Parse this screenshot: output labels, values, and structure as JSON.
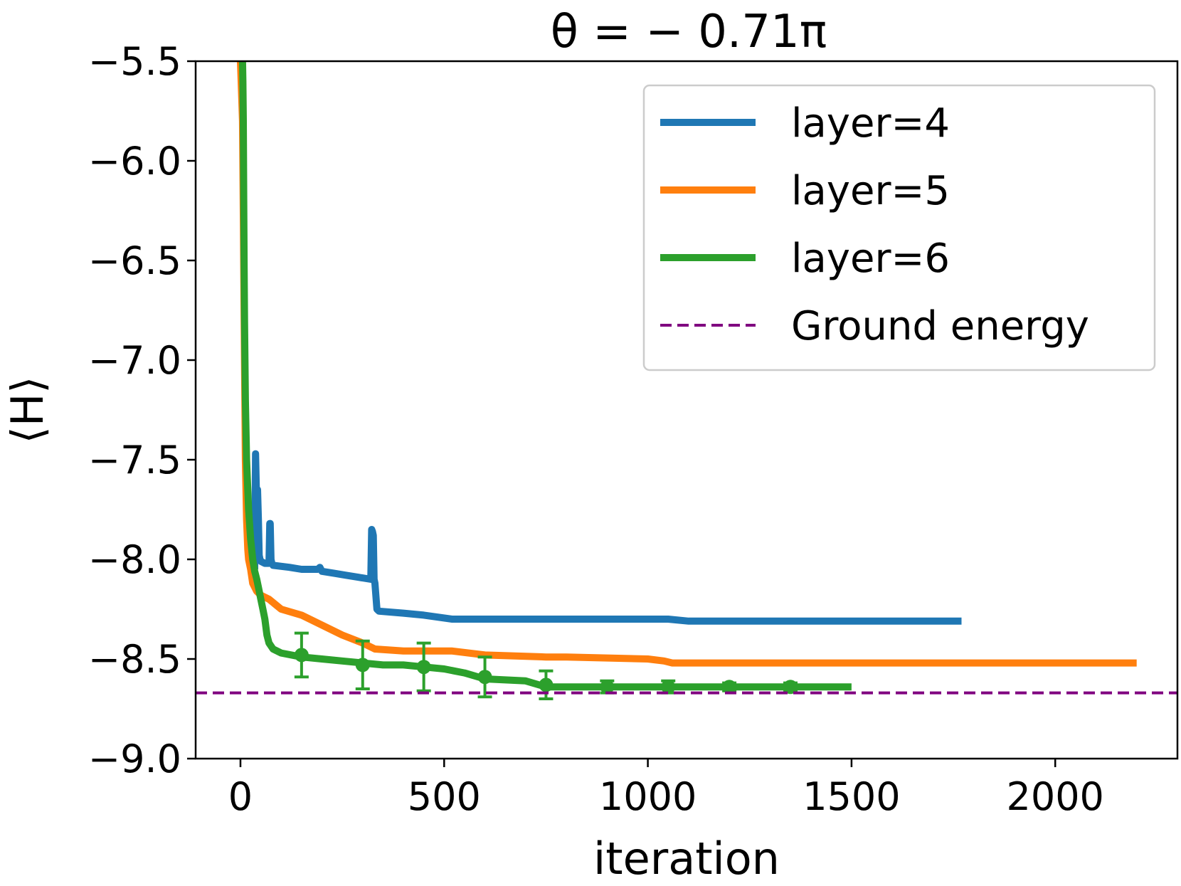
{
  "chart_data": {
    "type": "line",
    "title": "θ = − 0.71π",
    "xlabel": "iteration",
    "ylabel": "⟨H⟩",
    "xlim": [
      -110,
      2300
    ],
    "ylim": [
      -9.0,
      -5.5
    ],
    "xticks": [
      0,
      500,
      1000,
      1500,
      2000
    ],
    "yticks": [
      -9.0,
      -8.5,
      -8.0,
      -7.5,
      -7.0,
      -6.5,
      -6.0,
      -5.5
    ],
    "xtick_labels": [
      "0",
      "500",
      "1000",
      "1500",
      "2000"
    ],
    "ytick_labels": [
      "−9.0",
      "−8.5",
      "−8.0",
      "−7.5",
      "−7.0",
      "−6.5",
      "−6.0",
      "−5.5"
    ],
    "grid": false,
    "legend_position": "top-right",
    "series": [
      {
        "name": "layer=4",
        "color": "#1f77b4",
        "x": [
          35,
          37,
          38,
          40,
          42,
          44,
          46,
          48,
          50,
          60,
          70,
          72,
          73,
          75,
          77,
          80,
          120,
          150,
          190,
          195,
          200,
          230,
          260,
          290,
          320,
          322,
          324,
          326,
          328,
          330,
          335,
          340,
          400,
          450,
          520,
          680,
          1050,
          1100,
          1200,
          1500,
          1770
        ],
        "y": [
          -8.05,
          -7.47,
          -7.55,
          -7.75,
          -7.65,
          -7.8,
          -7.98,
          -8.0,
          -8.01,
          -8.02,
          -8.02,
          -7.82,
          -7.82,
          -8.0,
          -8.02,
          -8.03,
          -8.04,
          -8.05,
          -8.05,
          -8.04,
          -8.06,
          -8.07,
          -8.08,
          -8.09,
          -8.1,
          -7.85,
          -7.86,
          -7.88,
          -8.1,
          -8.12,
          -8.25,
          -8.26,
          -8.27,
          -8.28,
          -8.3,
          -8.3,
          -8.3,
          -8.31,
          -8.31,
          -8.31,
          -8.31
        ]
      },
      {
        "name": "layer=5",
        "color": "#ff7f0e",
        "x": [
          0,
          5,
          10,
          12,
          15,
          18,
          20,
          25,
          30,
          40,
          50,
          70,
          100,
          150,
          200,
          250,
          300,
          330,
          400,
          520,
          600,
          750,
          800,
          1000,
          1040,
          1060,
          1200,
          1500,
          1800,
          2200
        ],
        "y": [
          -5.5,
          -5.8,
          -7.0,
          -7.5,
          -7.8,
          -7.95,
          -8.0,
          -8.05,
          -8.12,
          -8.16,
          -8.18,
          -8.2,
          -8.25,
          -8.28,
          -8.33,
          -8.38,
          -8.42,
          -8.45,
          -8.46,
          -8.46,
          -8.48,
          -8.49,
          -8.49,
          -8.5,
          -8.51,
          -8.52,
          -8.52,
          -8.52,
          -8.52,
          -8.52
        ]
      },
      {
        "name": "layer=6",
        "color": "#2ca02c",
        "x": [
          5,
          6,
          7,
          8,
          9,
          10,
          11,
          12,
          15,
          20,
          25,
          30,
          35,
          40,
          45,
          50,
          55,
          60,
          65,
          70,
          80,
          100,
          150,
          200,
          250,
          300,
          350,
          400,
          450,
          500,
          550,
          600,
          700,
          750,
          800,
          900,
          1000,
          1100,
          1200,
          1300,
          1350,
          1500
        ],
        "y": [
          -5.5,
          -5.6,
          -5.8,
          -6.2,
          -6.5,
          -6.8,
          -7.0,
          -7.2,
          -7.5,
          -7.75,
          -7.9,
          -8.0,
          -8.06,
          -8.1,
          -8.15,
          -8.2,
          -8.25,
          -8.3,
          -8.38,
          -8.42,
          -8.45,
          -8.47,
          -8.49,
          -8.5,
          -8.51,
          -8.52,
          -8.53,
          -8.53,
          -8.54,
          -8.55,
          -8.57,
          -8.6,
          -8.61,
          -8.64,
          -8.64,
          -8.64,
          -8.64,
          -8.64,
          -8.64,
          -8.64,
          -8.64,
          -8.64
        ],
        "markers": {
          "x": [
            150,
            300,
            450,
            600,
            750,
            900,
            1050,
            1200,
            1350
          ],
          "y": [
            -8.48,
            -8.53,
            -8.54,
            -8.59,
            -8.63,
            -8.64,
            -8.64,
            -8.64,
            -8.64
          ],
          "err": [
            0.11,
            0.12,
            0.12,
            0.1,
            0.07,
            0.03,
            0.03,
            0.02,
            0.02
          ]
        }
      },
      {
        "name": "Ground energy",
        "color": "#800080",
        "style": "dashed",
        "y_const": -8.67
      }
    ]
  }
}
